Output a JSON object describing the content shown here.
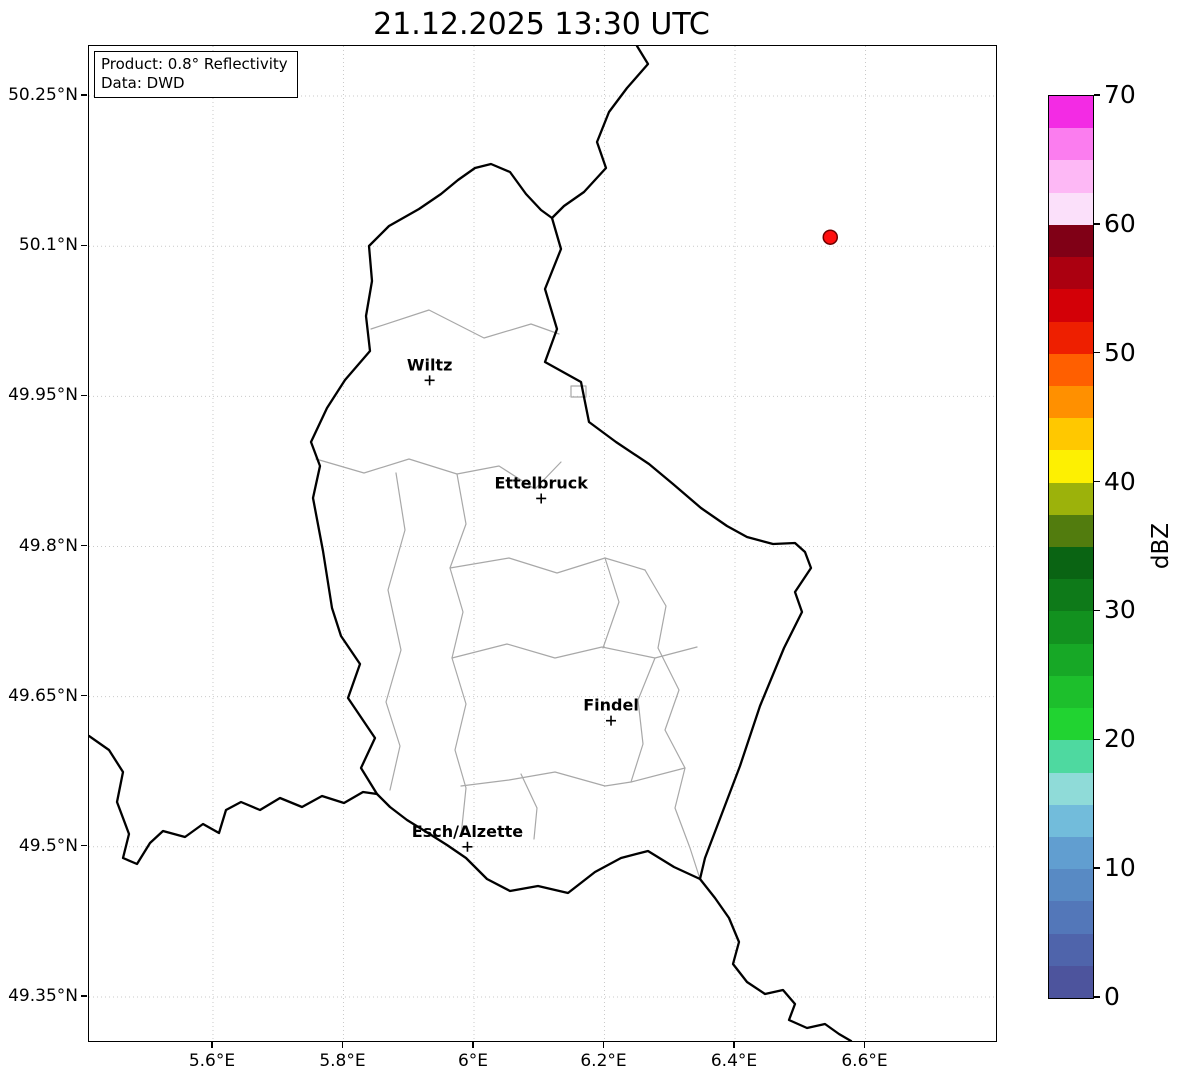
{
  "title": "21.12.2025 13:30 UTC",
  "info_box": {
    "product": "Product: 0.8° Reflectivity",
    "source": "Data: DWD"
  },
  "axes": {
    "extent": {
      "lon_min": 5.41,
      "lon_max": 6.8,
      "lat_min": 49.306,
      "lat_max": 50.3
    },
    "x_ticks": [
      {
        "value": 5.6,
        "label": "5.6°E"
      },
      {
        "value": 5.8,
        "label": "5.8°E"
      },
      {
        "value": 6.0,
        "label": "6°E"
      },
      {
        "value": 6.2,
        "label": "6.2°E"
      },
      {
        "value": 6.4,
        "label": "6.4°E"
      },
      {
        "value": 6.6,
        "label": "6.6°E"
      }
    ],
    "y_ticks": [
      {
        "value": 50.25,
        "label": "50.25°N"
      },
      {
        "value": 50.1,
        "label": "50.1°N"
      },
      {
        "value": 49.95,
        "label": "49.95°N"
      },
      {
        "value": 49.8,
        "label": "49.8°N"
      },
      {
        "value": 49.65,
        "label": "49.65°N"
      },
      {
        "value": 49.5,
        "label": "49.5°N"
      },
      {
        "value": 49.35,
        "label": "49.35°N"
      }
    ]
  },
  "map": {
    "colors": {
      "country_border": "#000000",
      "canton_border": "#a8a8a8",
      "grid": "#c9c9c9"
    },
    "cities": [
      {
        "name": "Wiltz",
        "lon": 5.932,
        "lat": 49.966
      },
      {
        "name": "Ettelbruck",
        "lon": 6.103,
        "lat": 49.848
      },
      {
        "name": "Findel",
        "lon": 6.21,
        "lat": 49.626
      },
      {
        "name": "Esch/Alzette",
        "lon": 5.99,
        "lat": 49.5
      }
    ],
    "radar_marker": {
      "lon": 6.546,
      "lat": 50.109,
      "fill": "#ff0f0f",
      "edge": "#6b0000",
      "radius": 7
    },
    "border_paths": {
      "country": [
        "M402,118 L421,126 L437,148 L452,164 L463,172 L472,203 L456,243 L468,283 L456,316 L492,336 L500,376 L527,396 L560,418 L584,438 L612,462 L638,480 L658,491 L684,498 L706,497 L716,506 L722,522 L706,546 L713,566 L695,602 L671,660 L651,720 L632,770 L616,812 L611,833 L585,821 L559,805 L532,812 L506,826 L479,847 L449,840 L421,845 L398,833 L377,812 L358,799 L339,787 L318,774 L301,761 L288,748 L272,722 L286,692 L259,652 L271,618 L252,590 L243,562 L234,505 L224,452 L231,420 L222,396 L238,362 L256,334 L281,305 L277,270 L283,235 L280,200 L300,180 L330,163 L352,148 L369,134 L386,122 Z",
        "M548,0 L559,18 L538,42 L520,66 L508,96 L517,122 L495,146 L475,160 L463,172",
        "M0,690 L20,704 L34,726 L28,756 L40,788 L34,812 L48,818 L61,797 L74,785 L96,791 L114,778 L130,787 L137,764 L152,756 L171,764 L191,752 L213,761 L233,750 L255,757 L274,746 L288,748",
        "M611,833 L626,852 L640,872 L650,896 L644,918 L658,936 L676,948 L694,944 L706,958 L700,974 L718,982 L736,978 L750,988 L762,995"
      ],
      "cantons": [
        "M282,283 L340,264 L395,292 L442,278 L470,288",
        "M227,413 L275,427 L320,413 L368,428 L410,420 L446,443 L472,416",
        "M307,427 L316,484 L299,544 L312,604 L297,656 L311,700 L301,744",
        "M368,428 L377,478 L361,522 L374,566 L363,612 L377,658 L366,704 L377,742 L372,790",
        "M361,522 L420,512 L468,527 L516,512 L556,524",
        "M363,612 L418,598 L466,612 L513,601 L566,612 L608,601",
        "M516,512 L530,556 L514,602",
        "M556,524 L577,560 L569,602 L590,644 L576,684 L596,722 L586,762 L601,802 L611,833",
        "M566,612 L549,654 L554,698 L542,736",
        "M372,740 L420,734 L466,726 L516,740 L542,736 L596,722",
        "M432,728 L448,762 L445,793",
        "M482,340 L497,340 L497,351 L482,351 Z"
      ]
    }
  },
  "colorbar": {
    "label": "dBZ",
    "min": 0,
    "max": 70,
    "ticks": [
      0,
      10,
      20,
      30,
      40,
      50,
      60,
      70
    ],
    "bands": [
      {
        "from": 0,
        "to": 2.5,
        "color": "#4d549d"
      },
      {
        "from": 2.5,
        "to": 5,
        "color": "#4f64ab"
      },
      {
        "from": 5,
        "to": 7.5,
        "color": "#5377b9"
      },
      {
        "from": 7.5,
        "to": 10,
        "color": "#588ac4"
      },
      {
        "from": 10,
        "to": 12.5,
        "color": "#619ed0"
      },
      {
        "from": 12.5,
        "to": 15,
        "color": "#72bcdb"
      },
      {
        "from": 15,
        "to": 17.5,
        "color": "#8fdbd8"
      },
      {
        "from": 17.5,
        "to": 20,
        "color": "#4ed9a0"
      },
      {
        "from": 20,
        "to": 22.5,
        "color": "#21d331"
      },
      {
        "from": 22.5,
        "to": 25,
        "color": "#1dbf2c"
      },
      {
        "from": 25,
        "to": 27.5,
        "color": "#17a826"
      },
      {
        "from": 27.5,
        "to": 30,
        "color": "#12911f"
      },
      {
        "from": 30,
        "to": 32.5,
        "color": "#0e7a19"
      },
      {
        "from": 32.5,
        "to": 35,
        "color": "#0a6413"
      },
      {
        "from": 35,
        "to": 37.5,
        "color": "#527c0e"
      },
      {
        "from": 37.5,
        "to": 40,
        "color": "#9cb20b"
      },
      {
        "from": 40,
        "to": 42.5,
        "color": "#fdf002"
      },
      {
        "from": 42.5,
        "to": 45,
        "color": "#ffc800"
      },
      {
        "from": 45,
        "to": 47.5,
        "color": "#ff9000"
      },
      {
        "from": 47.5,
        "to": 50,
        "color": "#ff5f00"
      },
      {
        "from": 50,
        "to": 52.5,
        "color": "#ee1f00"
      },
      {
        "from": 52.5,
        "to": 55,
        "color": "#d30007"
      },
      {
        "from": 55,
        "to": 57.5,
        "color": "#ab0010"
      },
      {
        "from": 57.5,
        "to": 60,
        "color": "#800016"
      },
      {
        "from": 60,
        "to": 62.5,
        "color": "#fbe0fa"
      },
      {
        "from": 62.5,
        "to": 65,
        "color": "#fdb8f5"
      },
      {
        "from": 65,
        "to": 67.5,
        "color": "#fb7def"
      },
      {
        "from": 67.5,
        "to": 70,
        "color": "#f32be4"
      }
    ]
  }
}
